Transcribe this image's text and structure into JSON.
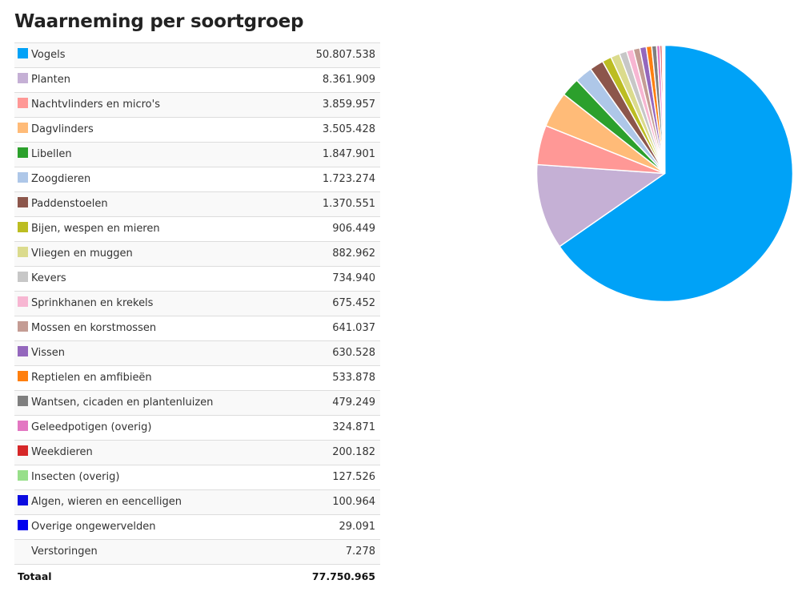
{
  "title": "Waarneming per soortgroep",
  "rows": [
    {
      "name": "Vogels",
      "count_label": "50.807.538",
      "value": 50807538,
      "color": "#00a2f7"
    },
    {
      "name": "Planten",
      "count_label": "8.361.909",
      "value": 8361909,
      "color": "#c5b0d5"
    },
    {
      "name": "Nachtvlinders en micro's",
      "count_label": "3.859.957",
      "value": 3859957,
      "color": "#ff9896"
    },
    {
      "name": "Dagvlinders",
      "count_label": "3.505.428",
      "value": 3505428,
      "color": "#ffbb78"
    },
    {
      "name": "Libellen",
      "count_label": "1.847.901",
      "value": 1847901,
      "color": "#2ca02c"
    },
    {
      "name": "Zoogdieren",
      "count_label": "1.723.274",
      "value": 1723274,
      "color": "#aec7e8"
    },
    {
      "name": "Paddenstoelen",
      "count_label": "1.370.551",
      "value": 1370551,
      "color": "#8c564b"
    },
    {
      "name": "Bijen, wespen en mieren",
      "count_label": "906.449",
      "value": 906449,
      "color": "#bcbd22"
    },
    {
      "name": "Vliegen en muggen",
      "count_label": "882.962",
      "value": 882962,
      "color": "#dbdb8d"
    },
    {
      "name": "Kevers",
      "count_label": "734.940",
      "value": 734940,
      "color": "#c7c7c7"
    },
    {
      "name": "Sprinkhanen en krekels",
      "count_label": "675.452",
      "value": 675452,
      "color": "#f7b6d2"
    },
    {
      "name": "Mossen en korstmossen",
      "count_label": "641.037",
      "value": 641037,
      "color": "#c49c94"
    },
    {
      "name": "Vissen",
      "count_label": "630.528",
      "value": 630528,
      "color": "#9467bd"
    },
    {
      "name": "Reptielen en amfibieën",
      "count_label": "533.878",
      "value": 533878,
      "color": "#ff7f0e"
    },
    {
      "name": "Wantsen, cicaden en plantenluizen",
      "count_label": "479.249",
      "value": 479249,
      "color": "#7f7f7f"
    },
    {
      "name": "Geleedpotigen (overig)",
      "count_label": "324.871",
      "value": 324871,
      "color": "#e377c2"
    },
    {
      "name": "Weekdieren",
      "count_label": "200.182",
      "value": 200182,
      "color": "#d62728"
    },
    {
      "name": "Insecten (overig)",
      "count_label": "127.526",
      "value": 127526,
      "color": "#98df8a"
    },
    {
      "name": "Algen, wieren en eencelligen",
      "count_label": "100.964",
      "value": 100964,
      "color": "#0a0ae0"
    },
    {
      "name": "Overige ongewervelden",
      "count_label": "29.091",
      "value": 29091,
      "color": "#0000ee"
    },
    {
      "name": "Verstoringen",
      "count_label": "7.278",
      "value": 7278,
      "color": null
    }
  ],
  "total": {
    "label": "Totaal",
    "count_label": "77.750.965"
  },
  "chart_data": {
    "type": "pie",
    "start_angle_deg": 0,
    "direction": "clockwise",
    "slice_border_color": "#ffffff",
    "labels": [
      "Vogels",
      "Planten",
      "Nachtvlinders en micro's",
      "Dagvlinders",
      "Libellen",
      "Zoogdieren",
      "Paddenstoelen",
      "Bijen, wespen en mieren",
      "Vliegen en muggen",
      "Kevers",
      "Sprinkhanen en krekels",
      "Mossen en korstmossen",
      "Vissen",
      "Reptielen en amfibieën",
      "Wantsen, cicaden en plantenluizen",
      "Geleedpotigen (overig)",
      "Weekdieren",
      "Insecten (overig)",
      "Algen, wieren en eencelligen",
      "Overige ongewervelden",
      "Verstoringen"
    ],
    "values": [
      50807538,
      8361909,
      3859957,
      3505428,
      1847901,
      1723274,
      1370551,
      906449,
      882962,
      734940,
      675452,
      641037,
      630528,
      533878,
      479249,
      324871,
      200182,
      127526,
      100964,
      29091,
      7278
    ],
    "colors": [
      "#00a2f7",
      "#c5b0d5",
      "#ff9896",
      "#ffbb78",
      "#2ca02c",
      "#aec7e8",
      "#8c564b",
      "#bcbd22",
      "#dbdb8d",
      "#c7c7c7",
      "#f7b6d2",
      "#c49c94",
      "#9467bd",
      "#ff7f0e",
      "#7f7f7f",
      "#e377c2",
      "#d62728",
      "#98df8a",
      "#0a0ae0",
      "#0000ee",
      "#cccccc"
    ]
  }
}
